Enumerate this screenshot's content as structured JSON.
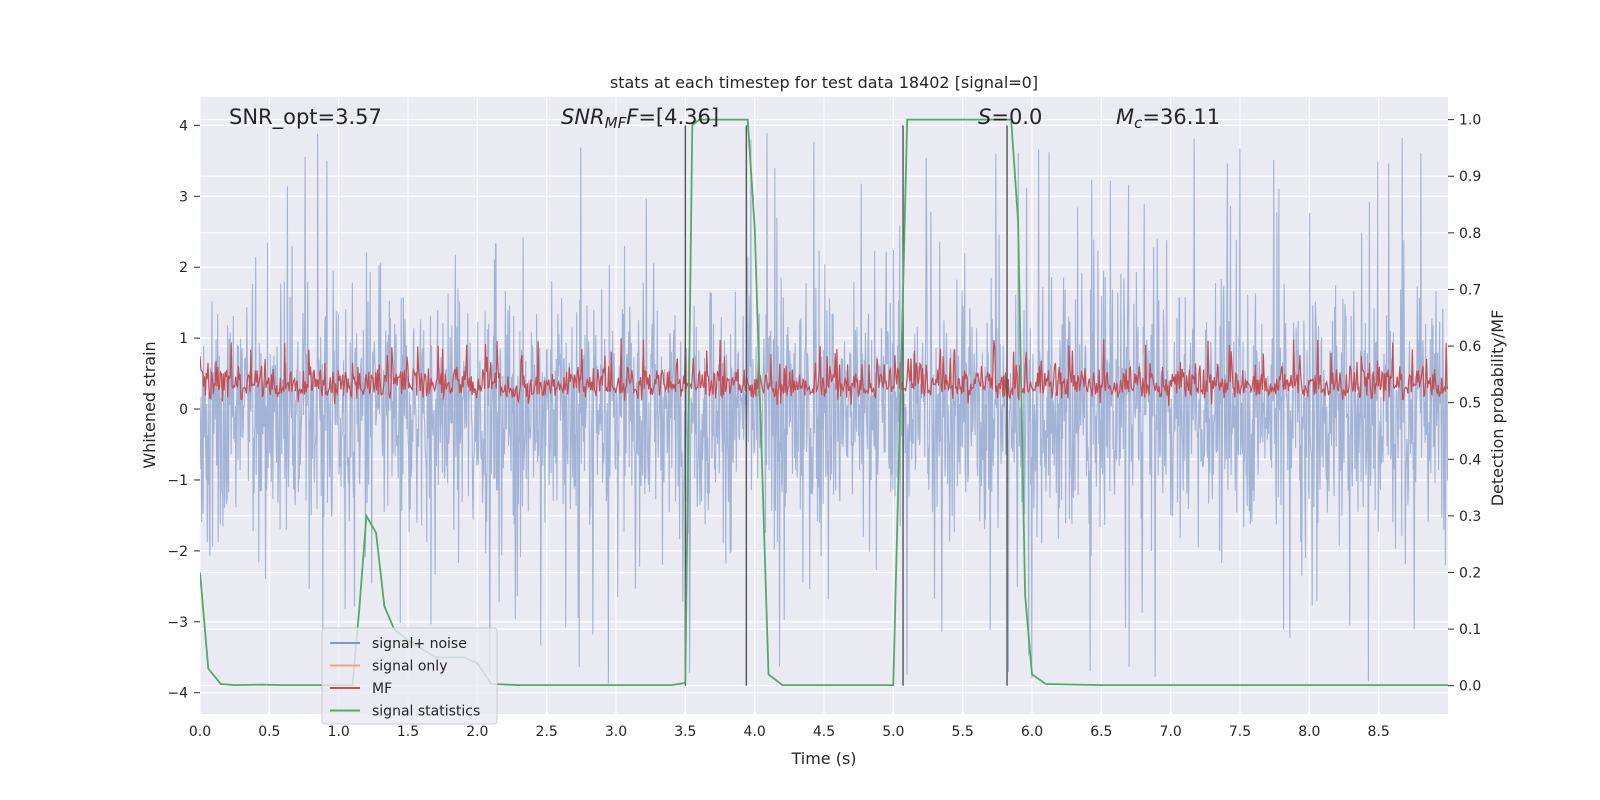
{
  "chart_data": {
    "type": "line",
    "title": "stats at each timestep for test data 18402 [signal=0]",
    "xlabel": "Time (s)",
    "ylabel": "Whitened strain",
    "ylabel_right": "Detection probability/MF",
    "xlim": [
      0.0,
      9.0
    ],
    "ylim": [
      -4.3,
      4.4
    ],
    "ylim_right": [
      -0.05,
      1.04
    ],
    "grid": true,
    "x_ticks": [
      "0.0",
      "0.5",
      "1.0",
      "1.5",
      "2.0",
      "2.5",
      "3.0",
      "3.5",
      "4.0",
      "4.5",
      "5.0",
      "5.5",
      "6.0",
      "6.5",
      "7.0",
      "7.5",
      "8.0",
      "8.5"
    ],
    "y_ticks": [
      "4",
      "3",
      "2",
      "1",
      "0",
      "−1",
      "−2",
      "−3",
      "−4"
    ],
    "y_ticks_right": [
      "1.0",
      "0.9",
      "0.8",
      "0.7",
      "0.6",
      "0.5",
      "0.4",
      "0.3",
      "0.2",
      "0.1",
      "0.0"
    ],
    "annotations": {
      "snr_opt": "SNR_opt=3.57",
      "snr_mf_base": "SNR",
      "snr_mf_sub": "MF",
      "snr_mf_f": "F",
      "snr_mf_rest": "=[4.36]",
      "s_var": "S",
      "s_rest": "=0.0",
      "mc_var": "M",
      "mc_sub": "c",
      "mc_rest": "=36.11"
    },
    "legend": {
      "placement": "lower-left",
      "entries": [
        {
          "label": "signal+ noise",
          "color": "#7d97c8"
        },
        {
          "label": "signal only",
          "color": "#f0a486"
        },
        {
          "label": "MF",
          "color": "#c44e52"
        },
        {
          "label": "signal statistics",
          "color": "#55a868"
        }
      ]
    },
    "series": [
      {
        "name": "signal+ noise",
        "axis": "left",
        "color": "#9aadd3",
        "description": "whitened noisy strain, dense band approx -1.5..1.6 with spikes to ±3.9",
        "band": [
          -1.55,
          1.65
        ],
        "peak_min": -3.95,
        "peak_max": 3.9
      },
      {
        "name": "MF",
        "axis": "left",
        "color": "#c44e52",
        "description": "matched filter output, approx 0.05..1.0",
        "band": [
          0.05,
          0.85
        ]
      },
      {
        "name": "signal statistics",
        "axis": "right",
        "color": "#55a868",
        "x": [
          0.0,
          0.06,
          0.15,
          0.25,
          0.45,
          0.6,
          0.8,
          1.0,
          1.1,
          1.15,
          1.2,
          1.27,
          1.33,
          1.4,
          1.5,
          1.7,
          1.9,
          2.0,
          2.1,
          2.3,
          2.5,
          3.0,
          3.4,
          3.5,
          3.55,
          3.6,
          3.9,
          3.95,
          4.0,
          4.1,
          4.2,
          4.5,
          4.8,
          5.0,
          5.05,
          5.1,
          5.5,
          5.8,
          5.85,
          5.9,
          5.95,
          6.0,
          6.1,
          6.5,
          7.0,
          7.5,
          8.0,
          8.5,
          9.0
        ],
        "values": [
          0.2,
          0.03,
          0.003,
          0.001,
          0.002,
          0.001,
          0.001,
          0.001,
          0.001,
          0.14,
          0.3,
          0.27,
          0.14,
          0.1,
          0.08,
          0.05,
          0.05,
          0.04,
          0.003,
          0.001,
          0.001,
          0.001,
          0.001,
          0.005,
          0.99,
          1.0,
          1.0,
          1.0,
          0.81,
          0.02,
          0.001,
          0.001,
          0.001,
          0.001,
          0.5,
          1.0,
          1.0,
          1.0,
          1.0,
          0.82,
          0.16,
          0.02,
          0.003,
          0.001,
          0.001,
          0.001,
          0.001,
          0.001,
          0.001
        ]
      }
    ],
    "vertical_lines": [
      3.5,
      3.94,
      5.07,
      5.82
    ]
  }
}
